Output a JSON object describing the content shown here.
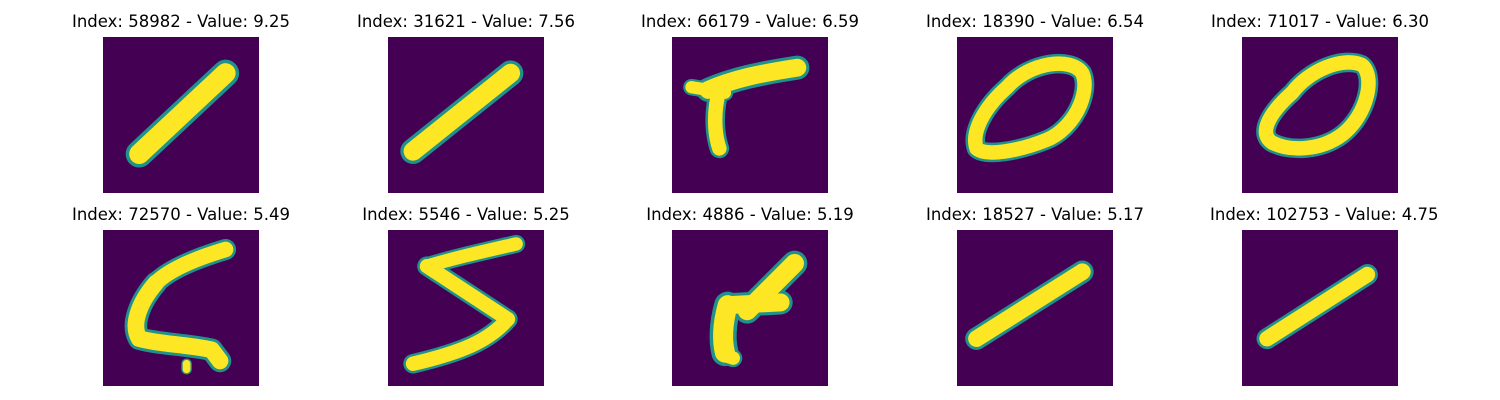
{
  "colors": {
    "background_fill": "#440154",
    "stroke_fill": "#fde725",
    "edge_fill": "#21918c",
    "title_text": "#000000"
  },
  "panels": [
    {
      "title": "Index: 58982 - Value: 9.25",
      "image": "handwritten digit 1 (diagonal stroke)",
      "glyph": "one_a"
    },
    {
      "title": "Index: 31621 - Value: 7.56",
      "image": "handwritten digit 1 (diagonal stroke)",
      "glyph": "one_b"
    },
    {
      "title": "Index: 66179 - Value: 6.59",
      "image": "handwritten digit 7",
      "glyph": "seven"
    },
    {
      "title": "Index: 18390 - Value: 6.54",
      "image": "handwritten digit 0",
      "glyph": "zero_a"
    },
    {
      "title": "Index: 71017 - Value: 6.30",
      "image": "handwritten digit 0",
      "glyph": "zero_b"
    },
    {
      "title": "Index: 72570 - Value: 5.49",
      "image": "handwritten digit 5",
      "glyph": "five_a"
    },
    {
      "title": "Index: 5546 - Value: 5.25",
      "image": "handwritten digit 5",
      "glyph": "five_b"
    },
    {
      "title": "Index: 4886 - Value: 5.19",
      "image": "handwritten digit 1",
      "glyph": "one_c"
    },
    {
      "title": "Index: 18527 - Value: 5.17",
      "image": "handwritten digit 1 (diagonal stroke)",
      "glyph": "one_d"
    },
    {
      "title": "Index: 102753 - Value: 4.75",
      "image": "handwritten digit 1 (diagonal stroke)",
      "glyph": "one_e"
    }
  ]
}
